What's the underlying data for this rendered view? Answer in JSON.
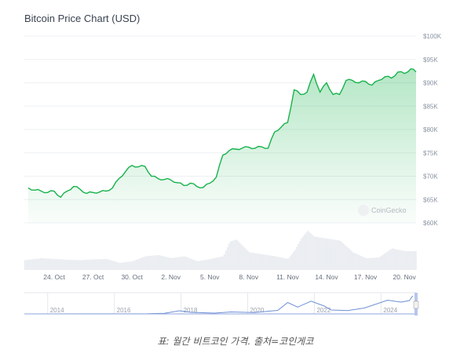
{
  "title": "Bitcoin Price Chart (USD)",
  "caption": "표: 월간 비트코인 가격. 출처=코인게코",
  "watermark": "CoinGecko",
  "colors": {
    "line": "#16b24b",
    "fill": "#16b24b",
    "volume": "#e6e9ee",
    "navigator": "#6f8fd6",
    "grid": "#eef0f3"
  },
  "chart_data": {
    "type": "area",
    "title": "Bitcoin Price Chart (USD)",
    "ylim": [
      60000,
      100000
    ],
    "yticks": [
      "$100K",
      "$95K",
      "$90K",
      "$85K",
      "$80K",
      "$75K",
      "$70K",
      "$65K",
      "$60K"
    ],
    "ytick_values": [
      100000,
      95000,
      90000,
      85000,
      80000,
      75000,
      70000,
      65000,
      60000
    ],
    "xticks": [
      "24. Oct",
      "27. Oct",
      "30. Oct",
      "2. Nov",
      "5. Nov",
      "8. Nov",
      "11. Nov",
      "14. Nov",
      "17. Nov",
      "20. Nov"
    ],
    "xtick_days": [
      24,
      27,
      30,
      33,
      36,
      39,
      42,
      45,
      48,
      51
    ],
    "xlim_days": [
      21.7,
      51.9
    ],
    "grid": true,
    "series": [
      {
        "x_days_from_oct0": [
          22,
          22.5,
          23,
          23.5,
          24,
          24.5,
          25,
          25.5,
          26,
          26.5,
          27,
          27.5,
          28,
          28.5,
          29,
          29.5,
          30,
          30.5,
          31,
          31.5,
          32,
          32.5,
          33,
          33.5,
          34,
          34.5,
          35,
          35.5,
          36,
          36.5,
          37,
          37.5,
          38,
          38.5,
          39,
          39.5,
          40,
          40.5,
          41,
          41.5,
          42,
          42.5,
          43,
          43.5,
          44,
          44.5,
          45,
          45.5,
          46,
          46.5,
          47,
          47.5,
          48,
          48.5,
          49,
          49.5,
          50,
          50.5,
          51,
          51.5,
          51.9
        ],
        "values": [
          67500,
          67000,
          66800,
          66500,
          66800,
          65500,
          66800,
          67800,
          67200,
          66300,
          66500,
          66600,
          66800,
          67500,
          69500,
          71000,
          72300,
          72000,
          72100,
          70000,
          69500,
          69300,
          69200,
          68600,
          68000,
          68500,
          67800,
          67600,
          68500,
          69800,
          74500,
          75500,
          75800,
          76000,
          76200,
          76000,
          76300,
          76000,
          79500,
          80500,
          81500,
          88500,
          87500,
          88000,
          91800,
          88000,
          90000,
          87500,
          87500,
          90500,
          90500,
          90000,
          90300,
          89500,
          90500,
          91300,
          91000,
          92300,
          92000,
          93000,
          92300
        ]
      }
    ],
    "volume_relative": {
      "days": [
        21.7,
        23,
        24,
        25,
        26,
        27,
        28,
        29,
        30,
        31,
        32,
        33,
        34,
        35,
        36,
        37,
        37.5,
        38,
        39,
        40,
        41,
        42,
        42.5,
        43,
        43.5,
        44,
        45,
        46,
        47,
        48,
        49,
        50,
        51,
        51.9
      ],
      "values": [
        25,
        30,
        28,
        26,
        25,
        27,
        28,
        18,
        22,
        35,
        38,
        30,
        35,
        22,
        28,
        35,
        72,
        78,
        45,
        40,
        35,
        28,
        50,
        80,
        100,
        85,
        80,
        75,
        45,
        30,
        32,
        55,
        48,
        48
      ]
    },
    "navigator": {
      "xticks": [
        "2014",
        "2016",
        "2018",
        "2020",
        "2022",
        "2024"
      ],
      "ytick_values": [],
      "years": [
        2013.3,
        2015,
        2017,
        2017.5,
        2017.95,
        2018.3,
        2019,
        2019.5,
        2020.2,
        2020.9,
        2021.2,
        2021.5,
        2021.9,
        2022.3,
        2022.5,
        2023,
        2023.5,
        2024.2,
        2024.6,
        2024.85,
        2024.95
      ],
      "values": [
        100,
        300,
        1000,
        3000,
        16000,
        8000,
        4000,
        10000,
        7000,
        18000,
        58000,
        35000,
        65000,
        40000,
        20000,
        17000,
        30000,
        70000,
        60000,
        68000,
        92000
      ]
    }
  }
}
